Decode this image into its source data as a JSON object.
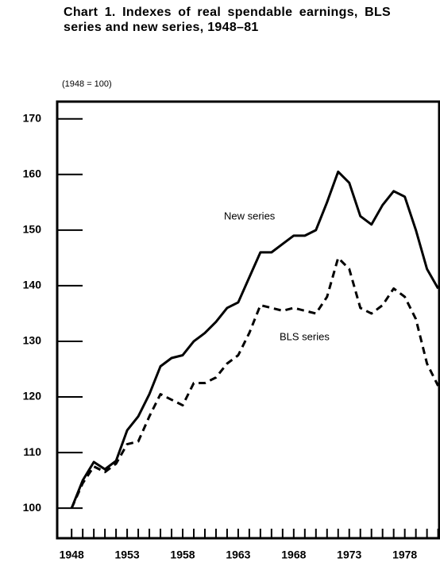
{
  "chart_data": {
    "type": "line",
    "title": "Chart 1. Indexes of real spendable earnings, BLS series and new series, 1948–81",
    "subtitle": "(1948 = 100)",
    "annotations": [
      "New series",
      "BLS series"
    ],
    "x": [
      1948,
      1949,
      1950,
      1951,
      1952,
      1953,
      1954,
      1955,
      1956,
      1957,
      1958,
      1959,
      1960,
      1961,
      1962,
      1963,
      1964,
      1965,
      1966,
      1967,
      1968,
      1969,
      1970,
      1971,
      1972,
      1973,
      1974,
      1975,
      1976,
      1977,
      1978,
      1979,
      1980,
      1981
    ],
    "series": [
      {
        "name": "New series",
        "color": "#000000",
        "dash": false,
        "values": [
          100,
          105,
          108.3,
          107,
          108.5,
          114,
          116.5,
          120.5,
          125.5,
          127,
          127.5,
          130,
          131.5,
          133.5,
          136,
          137,
          141.5,
          146,
          146,
          147.5,
          149,
          149,
          150,
          155,
          160.5,
          158.5,
          152.5,
          151,
          154.5,
          157,
          156,
          150,
          143,
          139.5
        ]
      },
      {
        "name": "BLS series",
        "color": "#000000",
        "dash": true,
        "values": [
          100,
          104.5,
          107.5,
          106.5,
          108,
          111.5,
          112,
          116.5,
          120.5,
          119.5,
          118.5,
          122.5,
          122.5,
          123.5,
          126,
          127.5,
          131.5,
          136.5,
          136,
          135.5,
          136,
          135.5,
          135,
          138,
          145,
          143,
          136,
          135,
          136.5,
          139.5,
          138,
          134,
          126,
          122
        ]
      }
    ],
    "xlim": [
      1946.7,
      1981.1
    ],
    "xticks": [
      1948,
      1953,
      1958,
      1963,
      1968,
      1973,
      1978
    ],
    "xminor_ticks": [
      1948,
      1949,
      1950,
      1951,
      1952,
      1953,
      1954,
      1955,
      1956,
      1957,
      1958,
      1959,
      1960,
      1961,
      1962,
      1963,
      1964,
      1965,
      1966,
      1967,
      1968,
      1969,
      1970,
      1971,
      1972,
      1973,
      1974,
      1975,
      1976,
      1977,
      1978,
      1979,
      1980,
      1981
    ],
    "ylim": [
      94.6,
      173.1
    ],
    "yticks": [
      100,
      110,
      120,
      130,
      140,
      150,
      160,
      170
    ]
  }
}
